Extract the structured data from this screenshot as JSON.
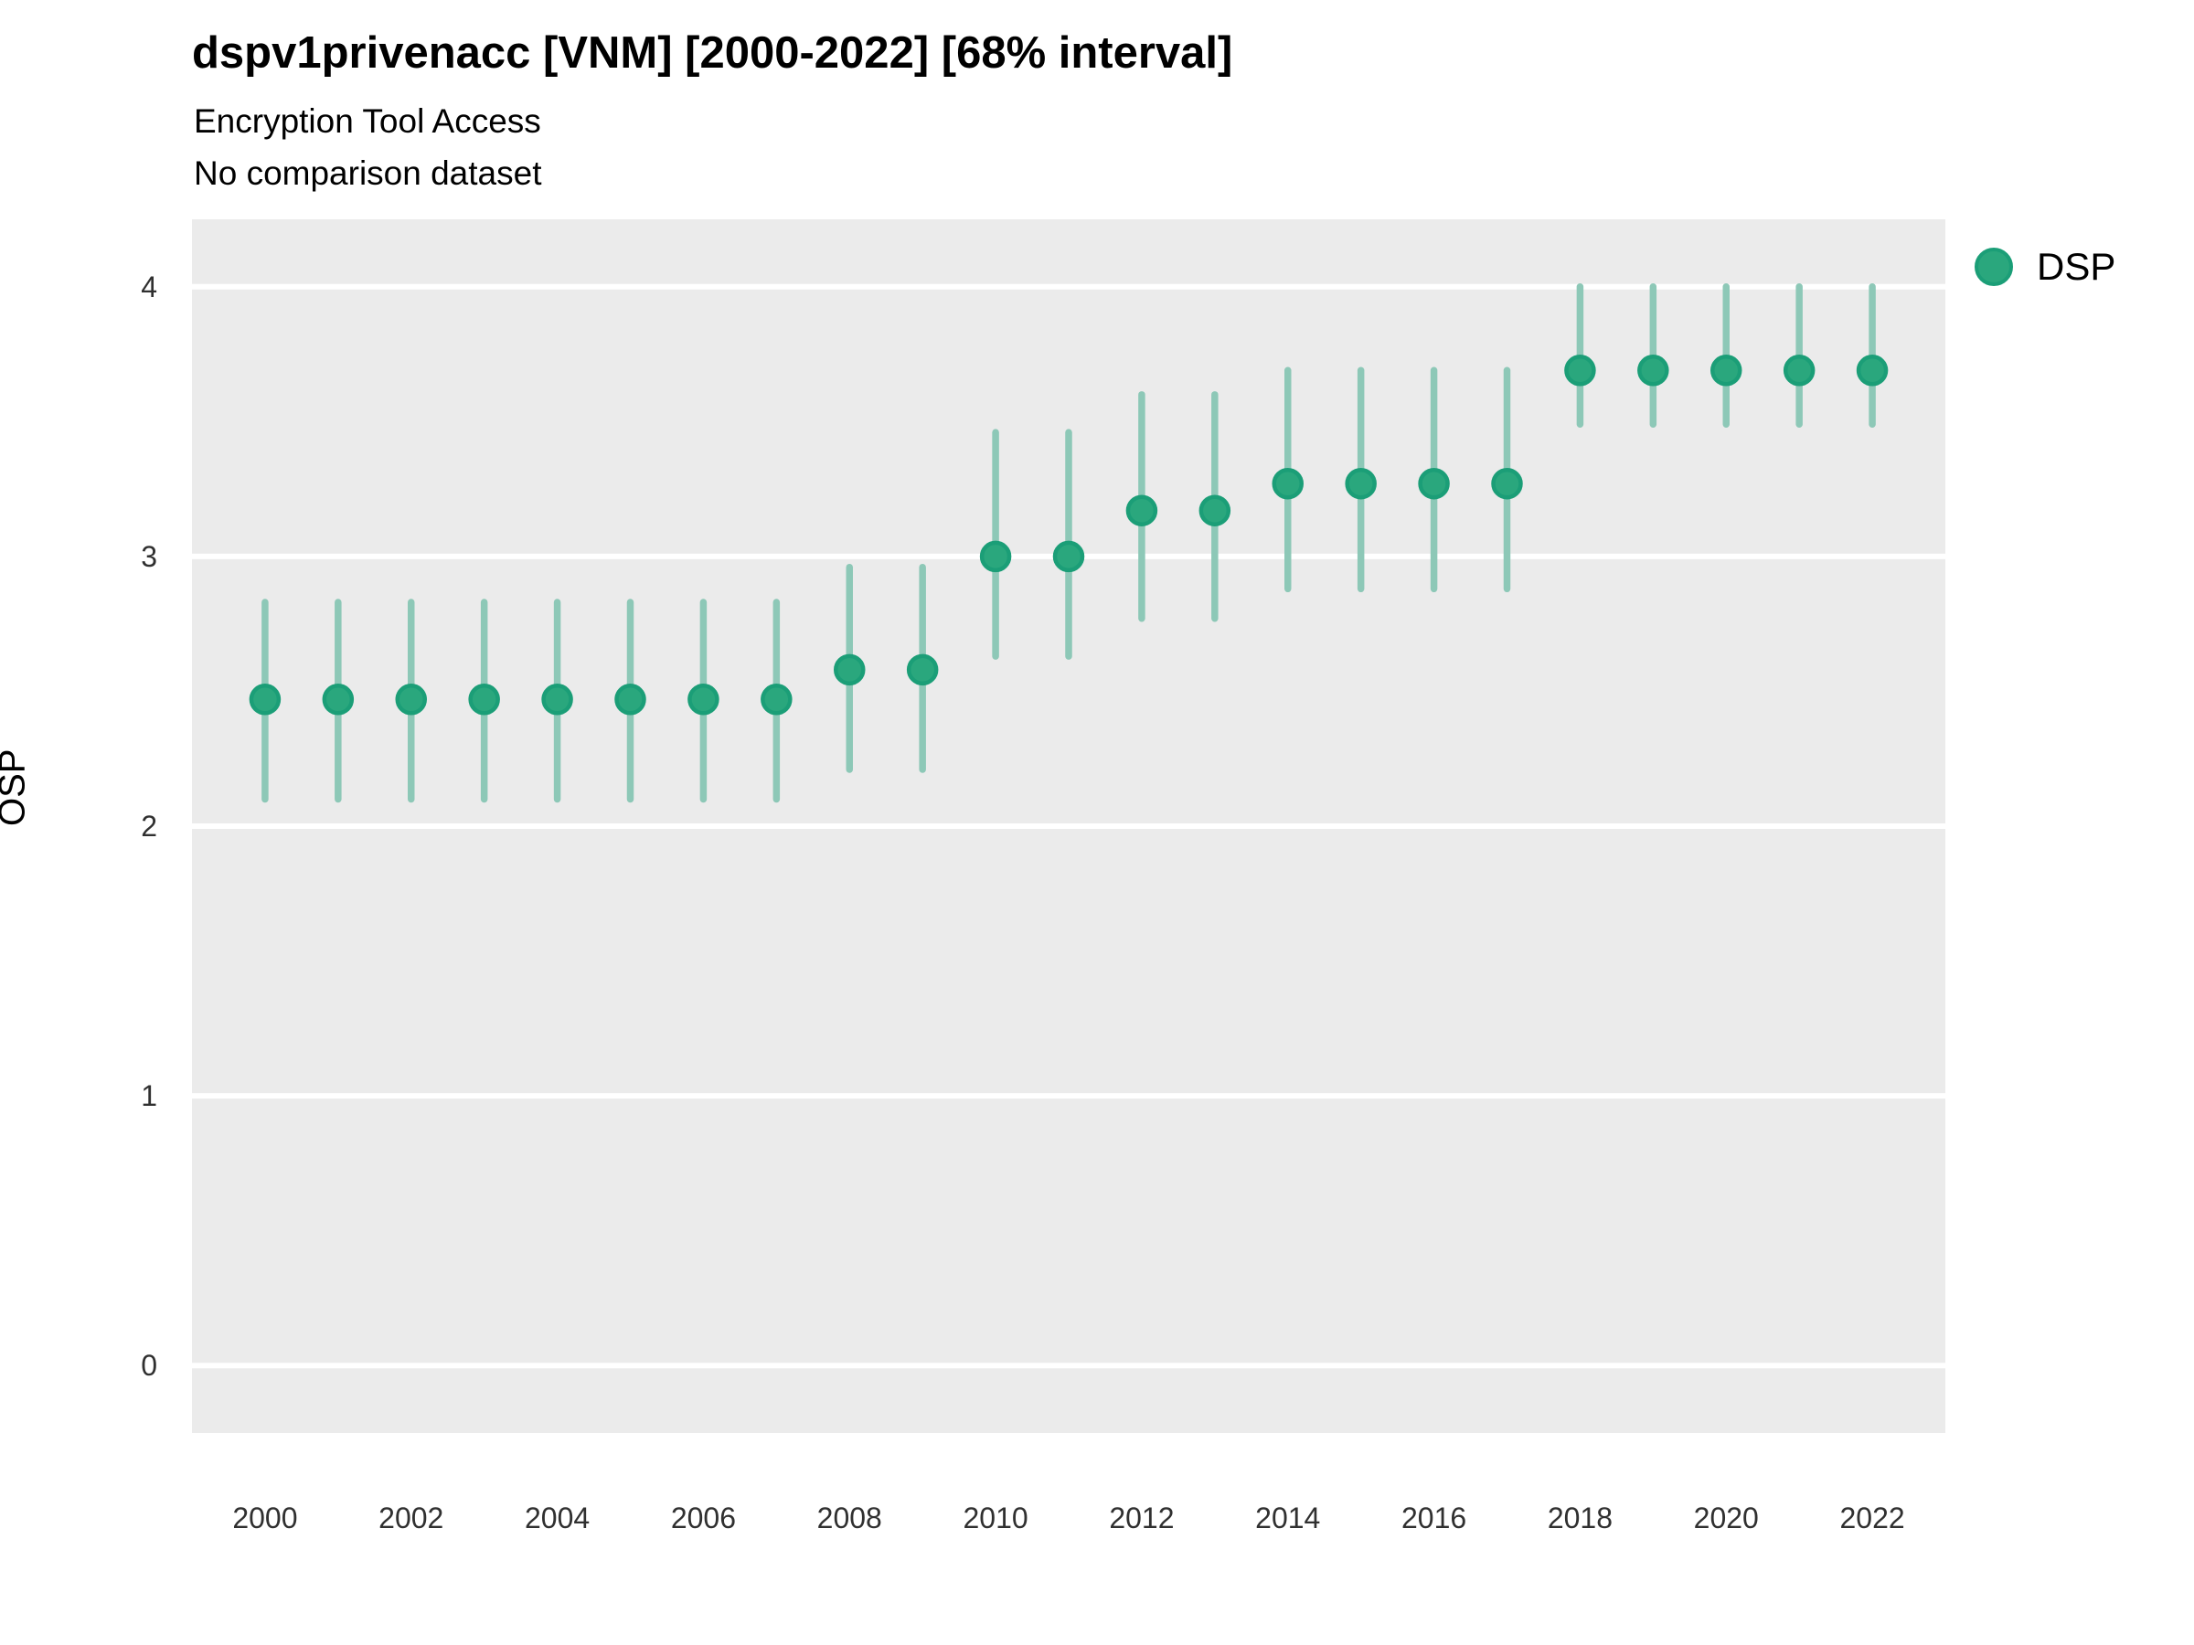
{
  "header": {
    "title": "dspv1privenacc [VNM] [2000-2022] [68% interval]",
    "subtitle": "Encryption Tool Access",
    "note": "No comparison dataset"
  },
  "axes": {
    "y_title": "OSP",
    "y_tick_labels": [
      "0",
      "1",
      "2",
      "3",
      "4"
    ],
    "x_tick_labels": [
      "2000",
      "2002",
      "2004",
      "2006",
      "2008",
      "2010",
      "2012",
      "2014",
      "2016",
      "2018",
      "2020",
      "2022"
    ]
  },
  "legend": {
    "position": "right",
    "items": [
      {
        "label": "DSP",
        "color": "#2aa77d"
      }
    ]
  },
  "style": {
    "panel_bg": "#ebebeb",
    "grid_color": "#ffffff",
    "bar_color": "#8dc8b7",
    "point_fill": "#2aa77d",
    "point_stroke": "#1b9e77",
    "tick_text_color": "#303030"
  },
  "chart_data": {
    "type": "pointrange-scatter",
    "title": "dspv1privenacc [VNM] [2000-2022] [68% interval]",
    "subtitle": "Encryption Tool Access",
    "note": "No comparison dataset",
    "xlabel": "",
    "ylabel": "OSP",
    "xlim": [
      1999,
      2023
    ],
    "ylim": [
      -0.25,
      4.25
    ],
    "grid": "horizontal-major-only",
    "legend_position": "right",
    "x_ticks": [
      2000,
      2002,
      2004,
      2006,
      2008,
      2010,
      2012,
      2014,
      2016,
      2018,
      2020,
      2022
    ],
    "y_ticks": [
      0,
      1,
      2,
      3,
      4
    ],
    "series": [
      {
        "name": "DSP",
        "interval": "68%",
        "points": [
          {
            "year": 2000,
            "y": 2.47,
            "lo": 2.1,
            "hi": 2.83
          },
          {
            "year": 2001,
            "y": 2.47,
            "lo": 2.1,
            "hi": 2.83
          },
          {
            "year": 2002,
            "y": 2.47,
            "lo": 2.1,
            "hi": 2.83
          },
          {
            "year": 2003,
            "y": 2.47,
            "lo": 2.1,
            "hi": 2.83
          },
          {
            "year": 2004,
            "y": 2.47,
            "lo": 2.1,
            "hi": 2.83
          },
          {
            "year": 2005,
            "y": 2.47,
            "lo": 2.1,
            "hi": 2.83
          },
          {
            "year": 2006,
            "y": 2.47,
            "lo": 2.1,
            "hi": 2.83
          },
          {
            "year": 2007,
            "y": 2.47,
            "lo": 2.1,
            "hi": 2.83
          },
          {
            "year": 2008,
            "y": 2.58,
            "lo": 2.21,
            "hi": 2.96
          },
          {
            "year": 2009,
            "y": 2.58,
            "lo": 2.21,
            "hi": 2.96
          },
          {
            "year": 2010,
            "y": 3.0,
            "lo": 2.63,
            "hi": 3.46
          },
          {
            "year": 2011,
            "y": 3.0,
            "lo": 2.63,
            "hi": 3.46
          },
          {
            "year": 2012,
            "y": 3.17,
            "lo": 2.77,
            "hi": 3.6
          },
          {
            "year": 2013,
            "y": 3.17,
            "lo": 2.77,
            "hi": 3.6
          },
          {
            "year": 2014,
            "y": 3.27,
            "lo": 2.88,
            "hi": 3.69
          },
          {
            "year": 2015,
            "y": 3.27,
            "lo": 2.88,
            "hi": 3.69
          },
          {
            "year": 2016,
            "y": 3.27,
            "lo": 2.88,
            "hi": 3.69
          },
          {
            "year": 2017,
            "y": 3.27,
            "lo": 2.88,
            "hi": 3.69
          },
          {
            "year": 2018,
            "y": 3.69,
            "lo": 3.49,
            "hi": 4.0
          },
          {
            "year": 2019,
            "y": 3.69,
            "lo": 3.49,
            "hi": 4.0
          },
          {
            "year": 2020,
            "y": 3.69,
            "lo": 3.49,
            "hi": 4.0
          },
          {
            "year": 2021,
            "y": 3.69,
            "lo": 3.49,
            "hi": 4.0
          },
          {
            "year": 2022,
            "y": 3.69,
            "lo": 3.49,
            "hi": 4.0
          }
        ]
      }
    ]
  }
}
